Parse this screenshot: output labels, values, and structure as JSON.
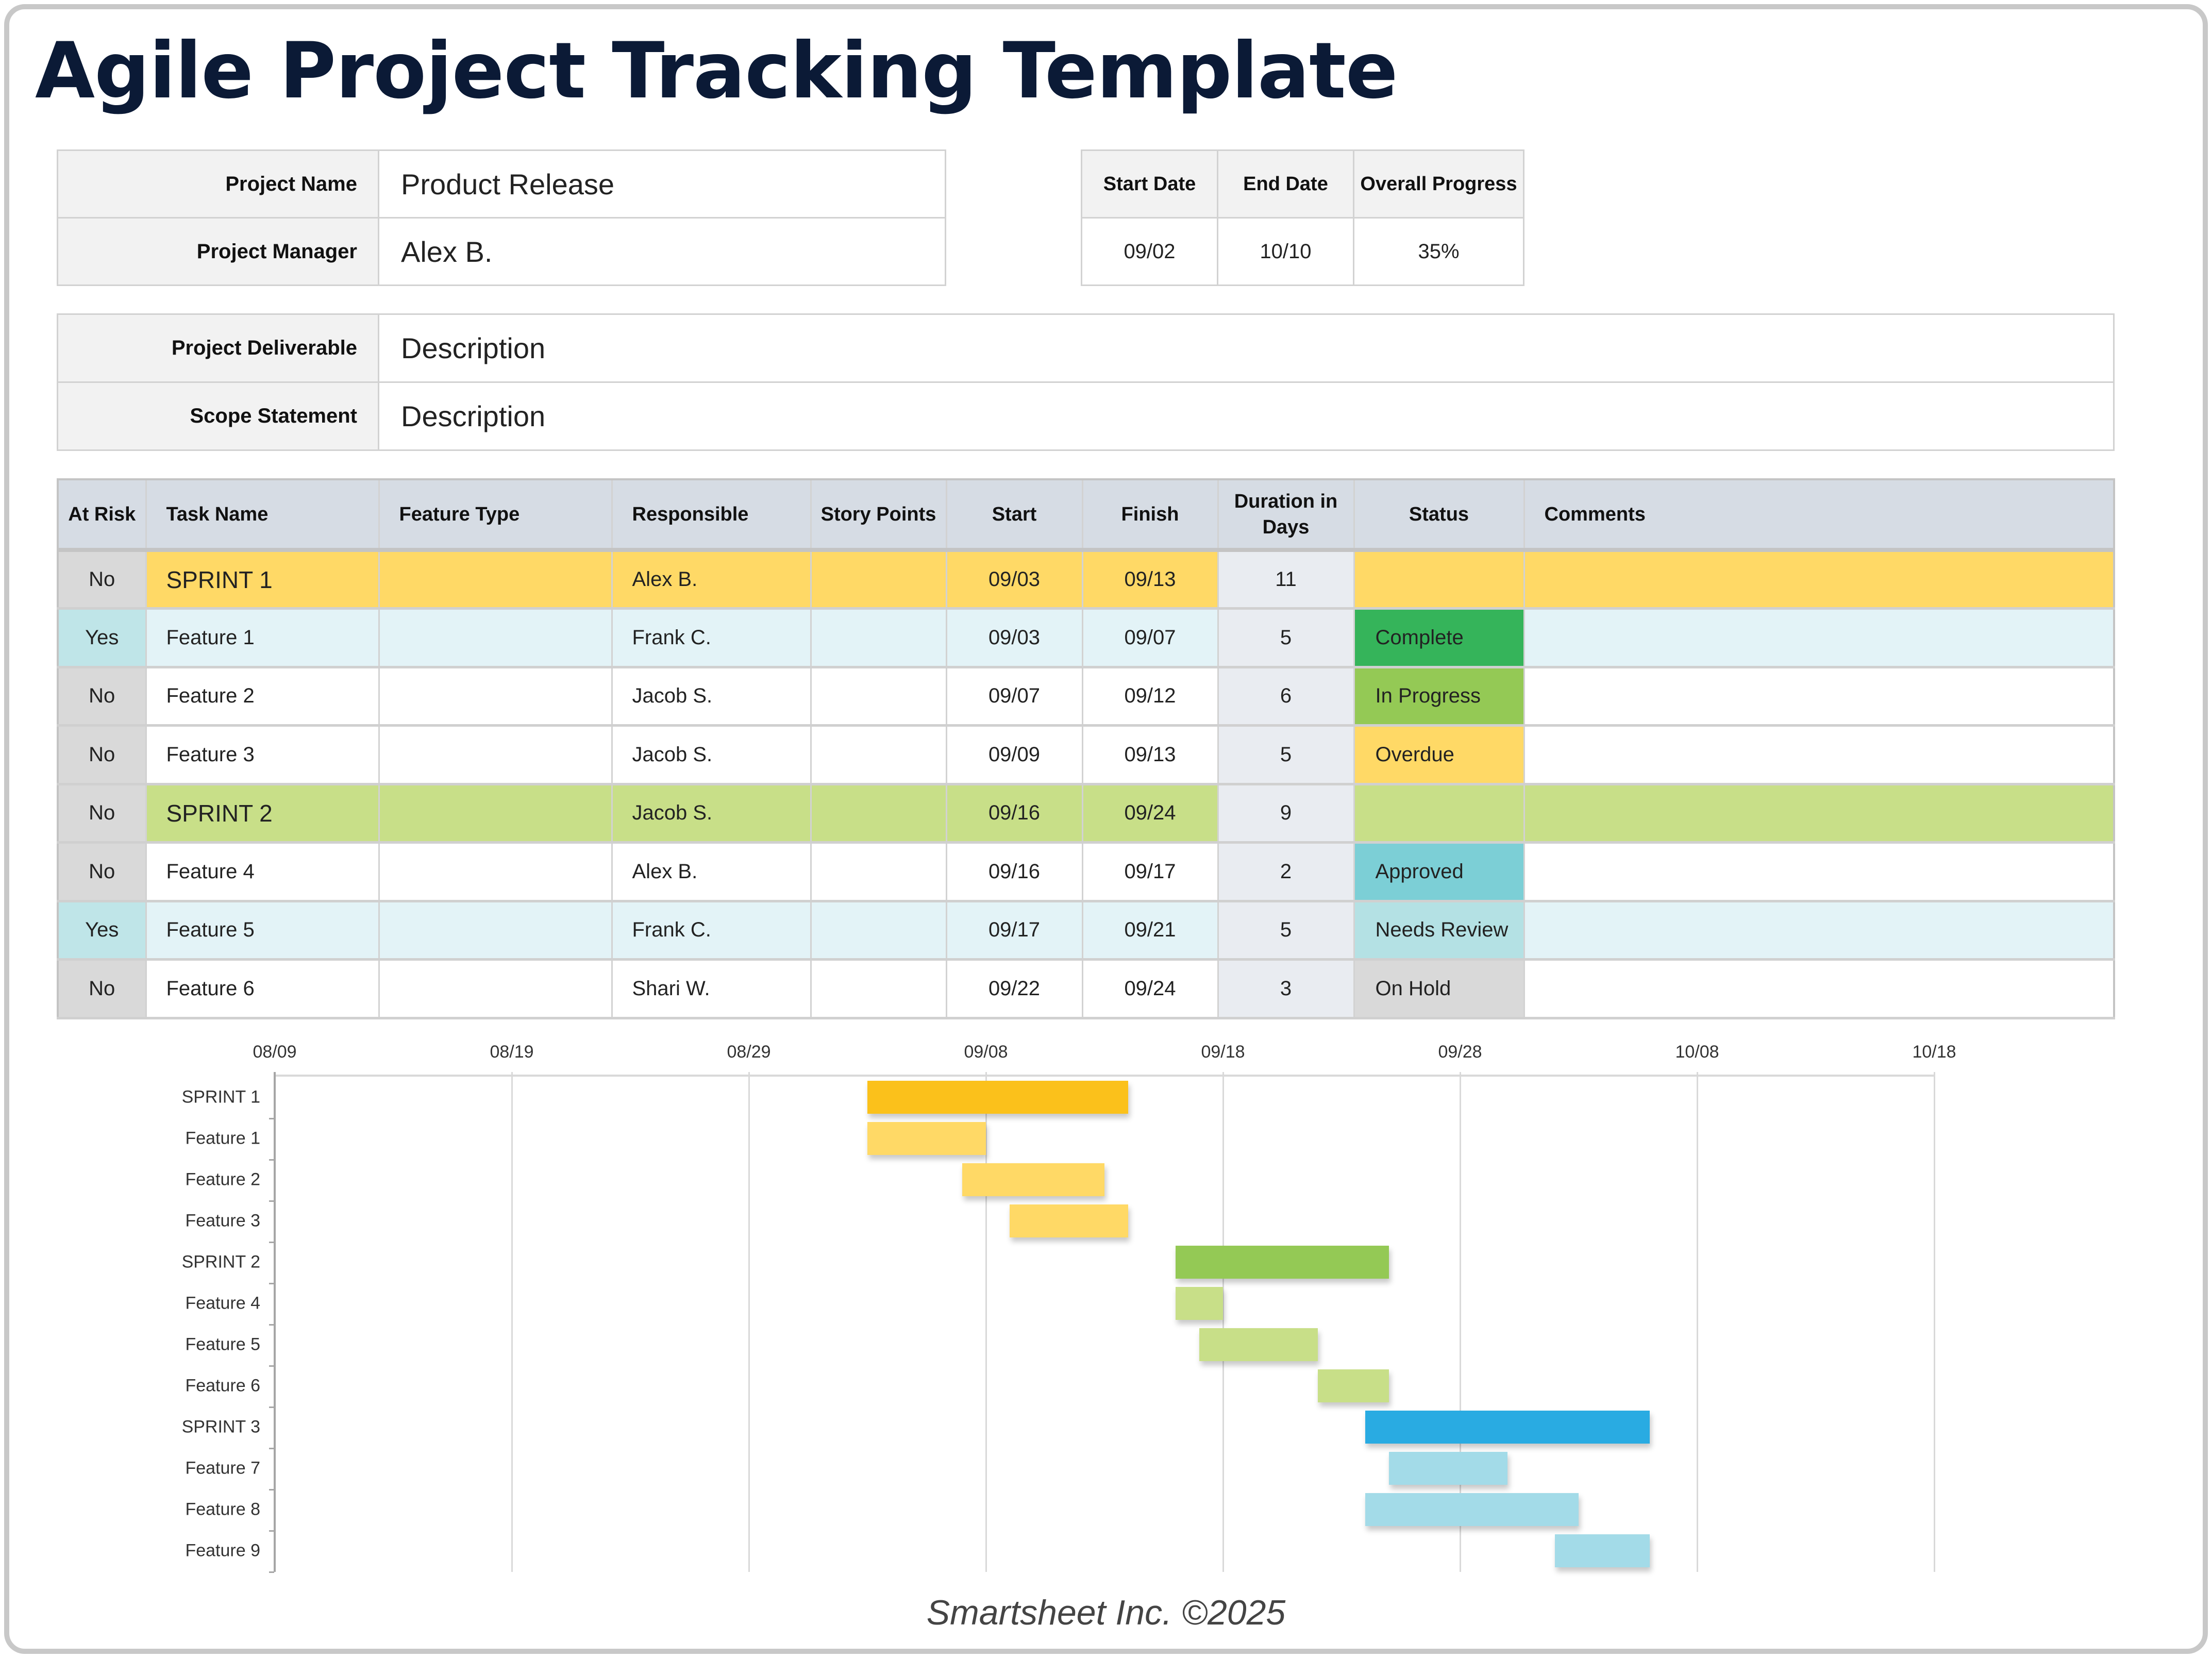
{
  "title": "Agile Project Tracking Template",
  "project_info": {
    "rows": [
      {
        "label": "Project Name",
        "value": "Product Release"
      },
      {
        "label": "Project Manager",
        "value": "Alex B."
      }
    ]
  },
  "dates": {
    "headers": [
      "Start Date",
      "End Date",
      "Overall Progress"
    ],
    "values": [
      "09/02",
      "10/10",
      "35%"
    ]
  },
  "description": {
    "rows": [
      {
        "label": "Project Deliverable",
        "value": "Description"
      },
      {
        "label": "Scope Statement",
        "value": "Description"
      }
    ]
  },
  "tasks": {
    "headers": [
      "At Risk",
      "Task Name",
      "Feature Type",
      "Responsible",
      "Story Points",
      "Start",
      "Finish",
      "Duration in Days",
      "Status",
      "Comments"
    ],
    "rows": [
      {
        "at_risk": "No",
        "task": "SPRINT 1",
        "feature_type": "",
        "responsible": "Alex B.",
        "story_points": "",
        "start": "09/03",
        "finish": "09/13",
        "duration": "11",
        "status": "",
        "comments": "",
        "kind": "sprint-yellow"
      },
      {
        "at_risk": "Yes",
        "task": "Feature 1",
        "feature_type": "",
        "responsible": "Frank C.",
        "story_points": "",
        "start": "09/03",
        "finish": "09/07",
        "duration": "5",
        "status": "Complete",
        "comments": "",
        "kind": "atrisk"
      },
      {
        "at_risk": "No",
        "task": "Feature 2",
        "feature_type": "",
        "responsible": "Jacob S.",
        "story_points": "",
        "start": "09/07",
        "finish": "09/12",
        "duration": "6",
        "status": "In Progress",
        "comments": "",
        "kind": "normal"
      },
      {
        "at_risk": "No",
        "task": "Feature 3",
        "feature_type": "",
        "responsible": "Jacob S.",
        "story_points": "",
        "start": "09/09",
        "finish": "09/13",
        "duration": "5",
        "status": "Overdue",
        "comments": "",
        "kind": "normal"
      },
      {
        "at_risk": "No",
        "task": "SPRINT 2",
        "feature_type": "",
        "responsible": "Jacob S.",
        "story_points": "",
        "start": "09/16",
        "finish": "09/24",
        "duration": "9",
        "status": "",
        "comments": "",
        "kind": "sprint-green"
      },
      {
        "at_risk": "No",
        "task": "Feature 4",
        "feature_type": "",
        "responsible": "Alex B.",
        "story_points": "",
        "start": "09/16",
        "finish": "09/17",
        "duration": "2",
        "status": "Approved",
        "comments": "",
        "kind": "normal"
      },
      {
        "at_risk": "Yes",
        "task": "Feature 5",
        "feature_type": "",
        "responsible": "Frank C.",
        "story_points": "",
        "start": "09/17",
        "finish": "09/21",
        "duration": "5",
        "status": "Needs Review",
        "comments": "",
        "kind": "atrisk"
      },
      {
        "at_risk": "No",
        "task": "Feature 6",
        "feature_type": "",
        "responsible": "Shari W.",
        "story_points": "",
        "start": "09/22",
        "finish": "09/24",
        "duration": "3",
        "status": "On Hold",
        "comments": "",
        "kind": "normal"
      }
    ]
  },
  "status_colors": {
    "Complete": "#35b45a",
    "In Progress": "#94c955",
    "Overdue": "#ffd966",
    "Approved": "#7ccfd6",
    "Needs Review": "#b4e1e4",
    "On Hold": "#d9d9d9"
  },
  "colors": {
    "title": "#0b1a36",
    "sprint1": "#ffd966",
    "sprint2": "#c8df88",
    "header_bg": "#d6dce4",
    "at_risk_yes": "#bfe5e8",
    "at_risk_row": "#e3f3f7"
  },
  "chart_data": {
    "type": "gantt",
    "title": "",
    "xlabel": "",
    "ylabel": "",
    "x_ticks": [
      "08/09",
      "08/19",
      "08/29",
      "09/08",
      "09/18",
      "09/28",
      "10/08",
      "10/18"
    ],
    "x_range": [
      "08/09",
      "10/18"
    ],
    "grid": true,
    "categories": [
      "SPRINT 1",
      "Feature 1",
      "Feature 2",
      "Feature 3",
      "SPRINT 2",
      "Feature 4",
      "Feature 5",
      "Feature 6",
      "SPRINT 3",
      "Feature 7",
      "Feature 8",
      "Feature 9"
    ],
    "series": [
      {
        "name": "SPRINT 1",
        "start": "09/03",
        "duration_days": 11,
        "color": "#fbc11b"
      },
      {
        "name": "Feature 1",
        "start": "09/03",
        "duration_days": 5,
        "color": "#ffd966"
      },
      {
        "name": "Feature 2",
        "start": "09/07",
        "duration_days": 6,
        "color": "#ffd966"
      },
      {
        "name": "Feature 3",
        "start": "09/09",
        "duration_days": 5,
        "color": "#ffd966"
      },
      {
        "name": "SPRINT 2",
        "start": "09/16",
        "duration_days": 9,
        "color": "#94c955"
      },
      {
        "name": "Feature 4",
        "start": "09/16",
        "duration_days": 2,
        "color": "#c8df88"
      },
      {
        "name": "Feature 5",
        "start": "09/17",
        "duration_days": 5,
        "color": "#c8df88"
      },
      {
        "name": "Feature 6",
        "start": "09/22",
        "duration_days": 3,
        "color": "#c8df88"
      },
      {
        "name": "SPRINT 3",
        "start": "09/24",
        "duration_days": 12,
        "color": "#29abe2"
      },
      {
        "name": "Feature 7",
        "start": "09/25",
        "duration_days": 5,
        "color": "#a3dbe8"
      },
      {
        "name": "Feature 8",
        "start": "09/24",
        "duration_days": 9,
        "color": "#a3dbe8"
      },
      {
        "name": "Feature 9",
        "start": "10/02",
        "duration_days": 4,
        "color": "#a3dbe8"
      }
    ]
  },
  "footer": "Smartsheet Inc. ©2025"
}
